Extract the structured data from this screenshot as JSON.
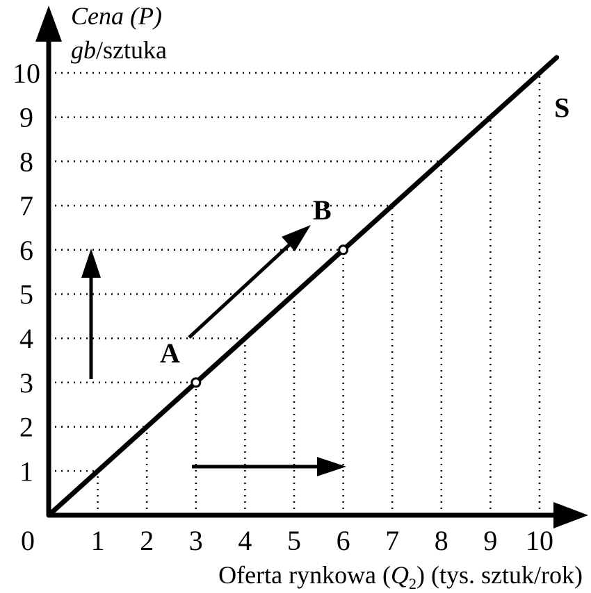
{
  "chart_data": {
    "type": "line",
    "series": [
      {
        "name": "S",
        "x": [
          0,
          10
        ],
        "y": [
          0,
          10
        ]
      }
    ],
    "xlim": [
      0,
      10
    ],
    "ylim": [
      0,
      10
    ],
    "x_ticks": [
      1,
      2,
      3,
      4,
      5,
      6,
      7,
      8,
      9,
      10
    ],
    "y_ticks": [
      1,
      2,
      3,
      4,
      5,
      6,
      7,
      8,
      9,
      10
    ],
    "origin_label": "0",
    "ylabel_line1": "Cena (P)",
    "ylabel_line2_italic": "gb",
    "ylabel_line2_rest": "/sztuka",
    "xlabel_prefix": "Oferta rynkowa (",
    "xlabel_var": "Q",
    "xlabel_sub": "2",
    "xlabel_suffix": ") (tys. sztuk/rok)",
    "grid": "dotted",
    "points": [
      {
        "label": "A",
        "x": 3,
        "y": 3
      },
      {
        "label": "B",
        "x": 6,
        "y": 6
      }
    ]
  }
}
